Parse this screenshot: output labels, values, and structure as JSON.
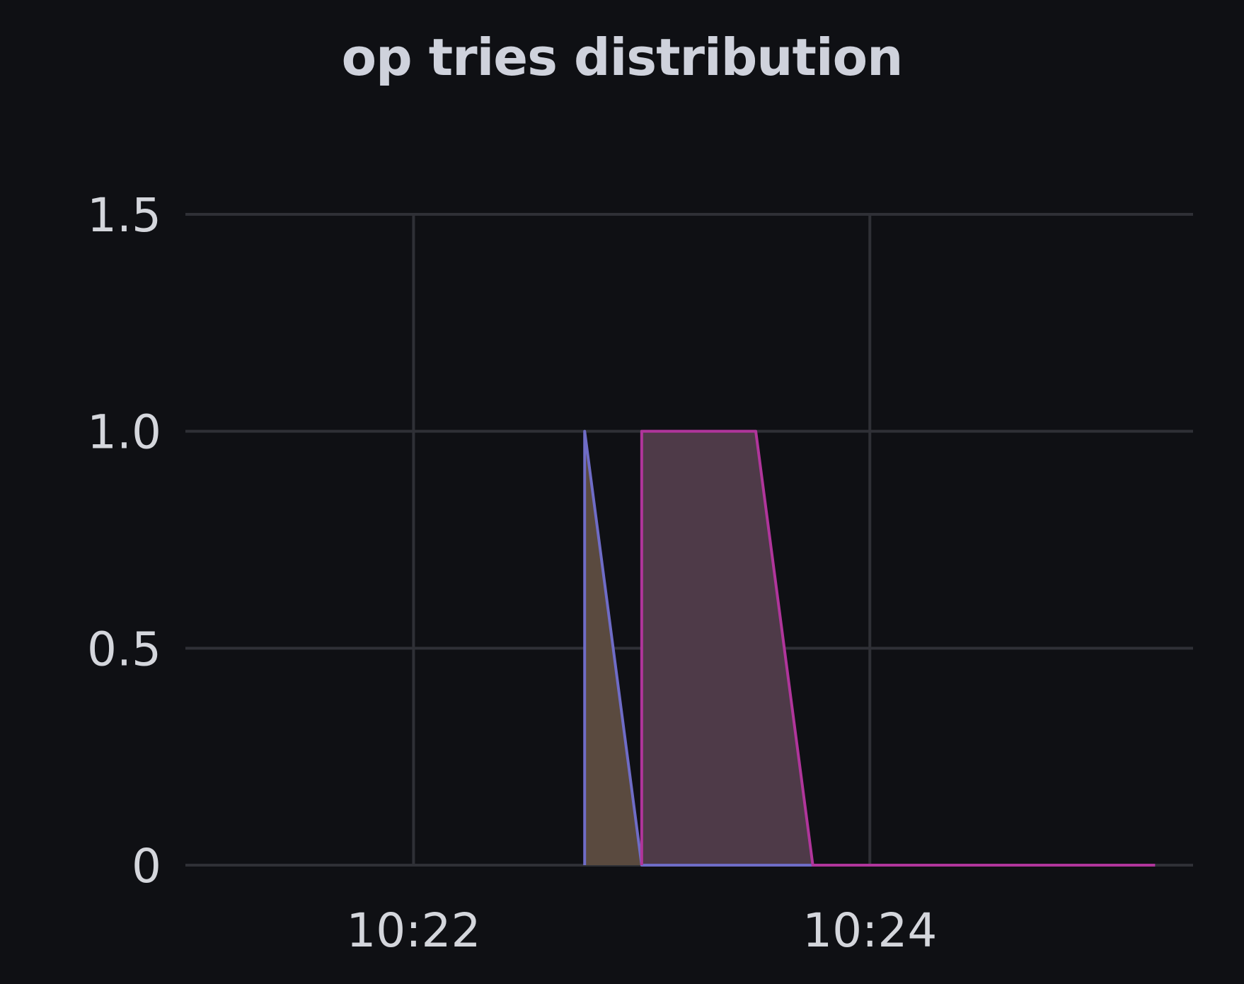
{
  "panel": {
    "title": "op tries distribution"
  },
  "chart_data": {
    "type": "area",
    "title": "op tries distribution",
    "xlabel": "",
    "ylabel": "",
    "x_unit": "minutes",
    "x_tick_labels": [
      {
        "x": "10:22",
        "label": "10:22"
      },
      {
        "x": "10:24",
        "label": "10:24"
      }
    ],
    "y_ticks": [
      0,
      0.5,
      1.0,
      1.5
    ],
    "y_tick_labels": [
      "0",
      "0.5",
      "1.0",
      "1.5"
    ],
    "xlim": [
      "10:21:00",
      "10:25:25"
    ],
    "ylim": [
      0,
      1.5
    ],
    "grid": true,
    "legend": "none",
    "series": [
      {
        "color": "#6f6cc7",
        "fill": "#5a4a3f",
        "points": [
          {
            "x": "10:22:45",
            "y": 0
          },
          {
            "x": "10:22:45",
            "y": 1
          },
          {
            "x": "10:23:00",
            "y": 0
          },
          {
            "x": "10:25:15",
            "y": 0
          }
        ]
      },
      {
        "color": "#b0359b",
        "fill": "#4e3a48",
        "points": [
          {
            "x": "10:23:00",
            "y": 0
          },
          {
            "x": "10:23:00",
            "y": 1
          },
          {
            "x": "10:23:30",
            "y": 1
          },
          {
            "x": "10:23:45",
            "y": 0
          },
          {
            "x": "10:25:15",
            "y": 0
          }
        ]
      }
    ]
  }
}
